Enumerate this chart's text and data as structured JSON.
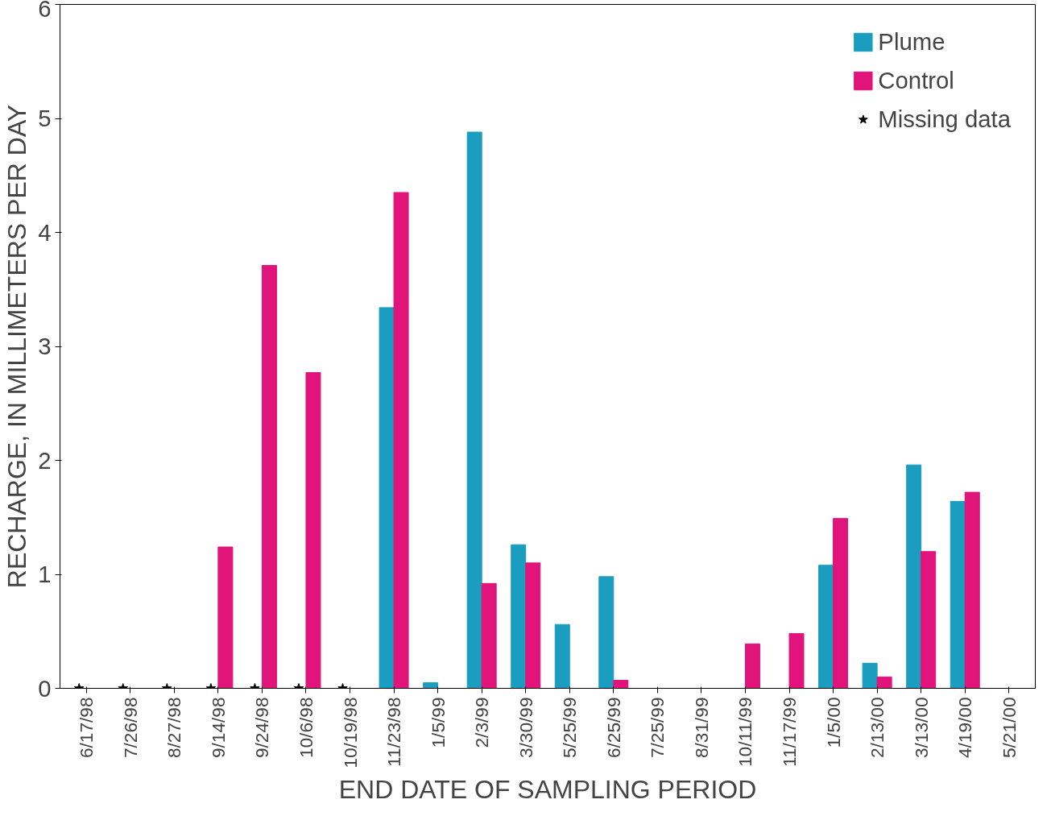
{
  "chart_data": {
    "type": "bar",
    "xlabel": "END DATE OF SAMPLING PERIOD",
    "ylabel": "RECHARGE, IN MILLIMETERS PER DAY",
    "categories": [
      "6/17/98",
      "7/26/98",
      "8/27/98",
      "9/14/98",
      "9/24/98",
      "10/6/98",
      "10/19/98",
      "11/23/98",
      "1/5/99",
      "2/3/99",
      "3/30/99",
      "5/25/99",
      "6/25/99",
      "7/25/99",
      "8/31/99",
      "10/11/99",
      "11/17/99",
      "1/5/00",
      "2/13/00",
      "3/13/00",
      "4/19/00",
      "5/21/00"
    ],
    "series": [
      {
        "name": "Plume",
        "color": "#1b9dc0",
        "values": [
          null,
          null,
          null,
          null,
          null,
          null,
          null,
          3.34,
          0.05,
          4.88,
          1.26,
          0.56,
          0.98,
          0,
          0,
          0,
          0,
          1.08,
          0.22,
          1.96,
          1.64,
          0
        ]
      },
      {
        "name": "Control",
        "color": "#e0147a",
        "values": [
          0,
          0,
          0,
          1.24,
          3.71,
          2.77,
          0,
          4.35,
          0,
          0.92,
          1.1,
          0,
          0.07,
          0,
          0,
          0.39,
          0.48,
          1.49,
          0.1,
          1.2,
          1.72,
          0
        ]
      },
      {
        "name": "Missing data",
        "type": "scatter",
        "marker": "star",
        "color": "#000000",
        "values": [
          0,
          0,
          0,
          0,
          0,
          0,
          0,
          null,
          null,
          null,
          null,
          null,
          null,
          null,
          null,
          null,
          null,
          null,
          null,
          null,
          null,
          null
        ]
      }
    ],
    "ylim": [
      0,
      6
    ],
    "yticks": [
      0,
      1,
      2,
      3,
      4,
      5,
      6
    ],
    "grid": false,
    "legend": "top right"
  }
}
